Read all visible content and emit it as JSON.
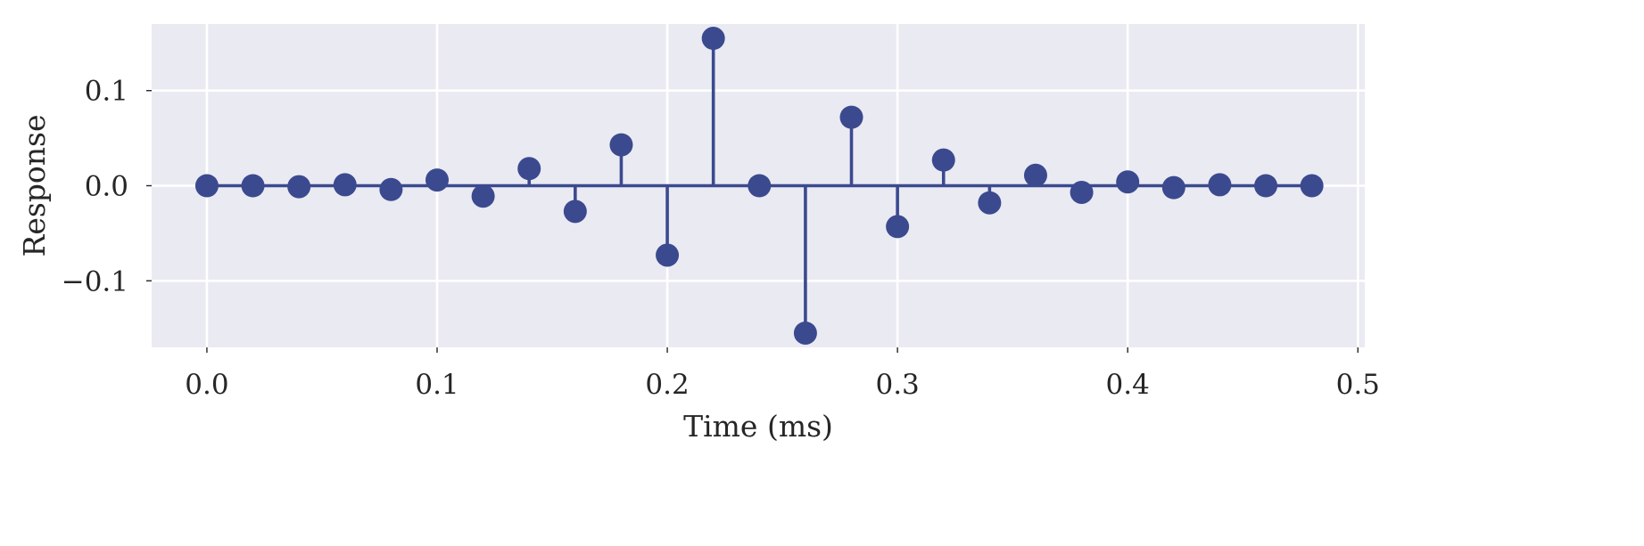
{
  "chart_data": {
    "type": "stem",
    "title": "",
    "xlabel": "Time (ms)",
    "ylabel": "Response",
    "xlim": [
      -0.024,
      0.503
    ],
    "ylim": [
      -0.17,
      0.17
    ],
    "x_ticks": [
      {
        "value": 0.0,
        "label": "0.0"
      },
      {
        "value": 0.1,
        "label": "0.1"
      },
      {
        "value": 0.2,
        "label": "0.2"
      },
      {
        "value": 0.3,
        "label": "0.3"
      },
      {
        "value": 0.4,
        "label": "0.4"
      },
      {
        "value": 0.5,
        "label": "0.5"
      }
    ],
    "y_ticks": [
      {
        "value": 0.1,
        "label": "0.1"
      },
      {
        "value": 0.0,
        "label": "0.0"
      },
      {
        "value": -0.1,
        "label": "−0.1"
      }
    ],
    "grid": true,
    "background": "#eaeaf2",
    "color": "#3b4a8f",
    "baseline": 0,
    "x": [
      0.0,
      0.02,
      0.04,
      0.06,
      0.08,
      0.1,
      0.12,
      0.14,
      0.16,
      0.18,
      0.2,
      0.22,
      0.24,
      0.26,
      0.28,
      0.3,
      0.32,
      0.34,
      0.36,
      0.38,
      0.4,
      0.42,
      0.44,
      0.46,
      0.48
    ],
    "values": [
      0.0,
      0.0,
      -0.001,
      0.001,
      -0.004,
      0.006,
      -0.011,
      0.018,
      -0.027,
      0.043,
      -0.073,
      0.155,
      0.0,
      -0.155,
      0.072,
      -0.043,
      0.027,
      -0.018,
      0.011,
      -0.007,
      0.004,
      -0.002,
      0.001,
      0.0,
      0.0
    ]
  }
}
